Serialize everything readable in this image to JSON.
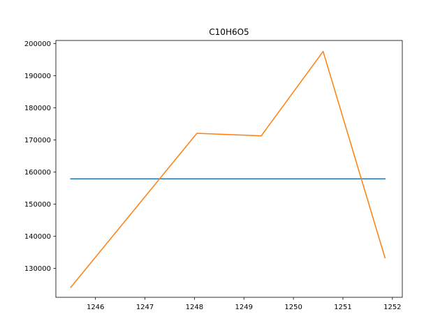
{
  "chart_data": {
    "type": "line",
    "title": "C10H6O5",
    "xlabel": "",
    "ylabel": "",
    "xlim": [
      1245.2,
      1252.2
    ],
    "ylim": [
      121000,
      201000
    ],
    "x_ticks": [
      1246,
      1247,
      1248,
      1249,
      1250,
      1251,
      1252
    ],
    "y_ticks": [
      130000,
      140000,
      150000,
      160000,
      170000,
      180000,
      190000,
      200000
    ],
    "grid": false,
    "legend": "none",
    "series": [
      {
        "color": "#1f77b4",
        "x": [
          1245.5,
          1251.85
        ],
        "y": [
          157900,
          157900
        ]
      },
      {
        "color": "#ff7f0e",
        "x": [
          1245.5,
          1248.05,
          1249.35,
          1250.6,
          1251.85
        ],
        "y": [
          124100,
          172100,
          171300,
          197600,
          133300
        ]
      }
    ]
  }
}
